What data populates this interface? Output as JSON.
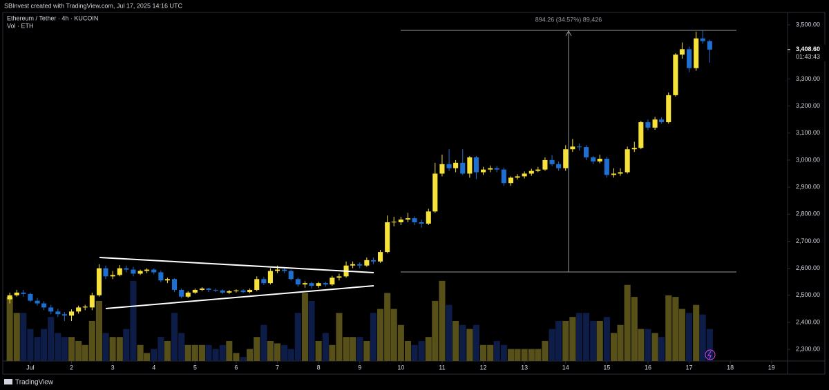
{
  "header": {
    "credit": "SBInvest created with TradingView.com, Jul 17, 2025 14:16 UTC",
    "footer": "TradingView"
  },
  "chart_data": {
    "type": "candlestick",
    "title": "Ethereum / Tether · 4h · KUCOIN",
    "subtitle": "Vol · ETH",
    "up_color": "#f7e23b",
    "down_color": "#1f6fd0",
    "volume_up_color": "#575018",
    "volume_down_color": "#0e1d48",
    "x": [
      0.5,
      0.67,
      0.83,
      1,
      1.17,
      1.33,
      1.5,
      1.67,
      1.83,
      2,
      2.17,
      2.33,
      2.5,
      2.67,
      2.83,
      3,
      3.17,
      3.33,
      3.5,
      3.67,
      3.83,
      4,
      4.17,
      4.33,
      4.5,
      4.67,
      4.83,
      5,
      5.17,
      5.33,
      5.5,
      5.67,
      5.83,
      6,
      6.17,
      6.33,
      6.5,
      6.67,
      6.83,
      7,
      7.17,
      7.33,
      7.5,
      7.67,
      7.83,
      8,
      8.17,
      8.33,
      8.5,
      8.67,
      8.83,
      9,
      9.17,
      9.33,
      9.5,
      9.67,
      9.83,
      10,
      10.17,
      10.33,
      10.5,
      10.67,
      10.83,
      11,
      11.17,
      11.33,
      11.5,
      11.67,
      11.83,
      12,
      12.17,
      12.33,
      12.5,
      12.67,
      12.83,
      13,
      13.17,
      13.33,
      13.5,
      13.67,
      13.83,
      14,
      14.17,
      14.33,
      14.5,
      14.67,
      14.83,
      15,
      15.17,
      15.33,
      15.5,
      15.67,
      15.83,
      16,
      16.17,
      16.33,
      16.5,
      16.67,
      16.83,
      17,
      17.17,
      17.33,
      17.5
    ],
    "ohlc": [
      [
        2485,
        2510,
        2470,
        2500
      ],
      [
        2500,
        2520,
        2495,
        2510
      ],
      [
        2510,
        2520,
        2495,
        2505
      ],
      [
        2505,
        2510,
        2475,
        2480
      ],
      [
        2480,
        2490,
        2462,
        2470
      ],
      [
        2470,
        2478,
        2445,
        2455
      ],
      [
        2455,
        2465,
        2430,
        2440
      ],
      [
        2440,
        2450,
        2420,
        2430
      ],
      [
        2430,
        2438,
        2405,
        2425
      ],
      [
        2425,
        2448,
        2405,
        2440
      ],
      [
        2440,
        2462,
        2432,
        2455
      ],
      [
        2455,
        2465,
        2445,
        2458
      ],
      [
        2455,
        2510,
        2445,
        2500
      ],
      [
        2500,
        2615,
        2495,
        2600
      ],
      [
        2600,
        2610,
        2560,
        2570
      ],
      [
        2570,
        2590,
        2560,
        2575
      ],
      [
        2575,
        2612,
        2570,
        2600
      ],
      [
        2600,
        2610,
        2585,
        2595
      ],
      [
        2595,
        2605,
        2570,
        2580
      ],
      [
        2580,
        2595,
        2575,
        2590
      ],
      [
        2590,
        2600,
        2582,
        2595
      ],
      [
        2595,
        2600,
        2578,
        2585
      ],
      [
        2585,
        2592,
        2548,
        2555
      ],
      [
        2555,
        2565,
        2545,
        2560
      ],
      [
        2560,
        2563,
        2512,
        2520
      ],
      [
        2520,
        2525,
        2488,
        2495
      ],
      [
        2495,
        2515,
        2490,
        2510
      ],
      [
        2510,
        2525,
        2505,
        2520
      ],
      [
        2520,
        2530,
        2515,
        2525
      ],
      [
        2525,
        2528,
        2512,
        2520
      ],
      [
        2520,
        2525,
        2512,
        2518
      ],
      [
        2518,
        2522,
        2505,
        2510
      ],
      [
        2510,
        2520,
        2505,
        2515
      ],
      [
        2515,
        2522,
        2510,
        2518
      ],
      [
        2518,
        2522,
        2508,
        2512
      ],
      [
        2512,
        2525,
        2508,
        2520
      ],
      [
        2520,
        2570,
        2515,
        2560
      ],
      [
        2560,
        2568,
        2538,
        2545
      ],
      [
        2545,
        2600,
        2540,
        2590
      ],
      [
        2590,
        2610,
        2582,
        2595
      ],
      [
        2595,
        2600,
        2582,
        2590
      ],
      [
        2590,
        2595,
        2555,
        2560
      ],
      [
        2560,
        2565,
        2532,
        2540
      ],
      [
        2540,
        2552,
        2528,
        2545
      ],
      [
        2545,
        2550,
        2525,
        2535
      ],
      [
        2535,
        2550,
        2528,
        2545
      ],
      [
        2545,
        2550,
        2532,
        2540
      ],
      [
        2540,
        2572,
        2535,
        2565
      ],
      [
        2565,
        2580,
        2555,
        2570
      ],
      [
        2570,
        2625,
        2565,
        2610
      ],
      [
        2610,
        2625,
        2600,
        2615
      ],
      [
        2615,
        2622,
        2600,
        2610
      ],
      [
        2610,
        2640,
        2605,
        2630
      ],
      [
        2630,
        2640,
        2615,
        2625
      ],
      [
        2625,
        2668,
        2620,
        2660
      ],
      [
        2660,
        2795,
        2655,
        2770
      ],
      [
        2770,
        2790,
        2755,
        2772
      ],
      [
        2770,
        2790,
        2760,
        2780
      ],
      [
        2780,
        2805,
        2770,
        2785
      ],
      [
        2785,
        2792,
        2760,
        2770
      ],
      [
        2770,
        2780,
        2750,
        2765
      ],
      [
        2765,
        2820,
        2760,
        2810
      ],
      [
        2810,
        2990,
        2805,
        2950
      ],
      [
        2950,
        3020,
        2940,
        2985
      ],
      [
        2985,
        3040,
        2960,
        2970
      ],
      [
        2970,
        3000,
        2955,
        2990
      ],
      [
        2990,
        3040,
        2945,
        2950
      ],
      [
        2950,
        3015,
        2935,
        3010
      ],
      [
        3010,
        3015,
        2930,
        2955
      ],
      [
        2955,
        2975,
        2945,
        2965
      ],
      [
        2965,
        2980,
        2955,
        2970
      ],
      [
        2970,
        2978,
        2955,
        2965
      ],
      [
        2965,
        2972,
        2905,
        2915
      ],
      [
        2915,
        2940,
        2905,
        2935
      ],
      [
        2935,
        2948,
        2928,
        2940
      ],
      [
        2940,
        2958,
        2932,
        2950
      ],
      [
        2950,
        2968,
        2942,
        2960
      ],
      [
        2960,
        2975,
        2955,
        2965
      ],
      [
        2965,
        3010,
        2960,
        3000
      ],
      [
        3000,
        3018,
        2978,
        2985
      ],
      [
        2985,
        2995,
        2960,
        2970
      ],
      [
        2970,
        3055,
        2960,
        3040
      ],
      [
        3040,
        3078,
        3030,
        3050
      ],
      [
        3050,
        3062,
        3035,
        3048
      ],
      [
        3048,
        3055,
        3000,
        3010
      ],
      [
        3010,
        3015,
        2985,
        2995
      ],
      [
        2995,
        3020,
        2988,
        3005
      ],
      [
        3005,
        3012,
        2935,
        2945
      ],
      [
        2945,
        2970,
        2935,
        2950
      ],
      [
        2950,
        2970,
        2942,
        2955
      ],
      [
        2955,
        3050,
        2950,
        3040
      ],
      [
        3040,
        3068,
        3030,
        3045
      ],
      [
        3045,
        3145,
        3040,
        3140
      ],
      [
        3140,
        3150,
        3110,
        3120
      ],
      [
        3120,
        3160,
        3112,
        3150
      ],
      [
        3150,
        3158,
        3135,
        3140
      ],
      [
        3140,
        3250,
        3135,
        3240
      ],
      [
        3240,
        3395,
        3235,
        3390
      ],
      [
        3390,
        3435,
        3375,
        3410
      ],
      [
        3410,
        3420,
        3325,
        3340
      ],
      [
        3340,
        3475,
        3330,
        3450
      ],
      [
        3450,
        3480,
        3430,
        3440
      ],
      [
        3440,
        3445,
        3360,
        3408.6
      ]
    ],
    "volume": [
      80,
      60,
      60,
      40,
      30,
      40,
      55,
      35,
      30,
      30,
      25,
      20,
      50,
      75,
      35,
      30,
      30,
      40,
      100,
      20,
      10,
      15,
      30,
      25,
      60,
      35,
      20,
      20,
      20,
      20,
      15,
      20,
      25,
      10,
      5,
      15,
      30,
      45,
      25,
      22,
      20,
      15,
      60,
      85,
      75,
      25,
      35,
      20,
      60,
      30,
      30,
      30,
      25,
      60,
      65,
      85,
      65,
      45,
      25,
      20,
      25,
      30,
      75,
      100,
      70,
      50,
      45,
      40,
      45,
      20,
      20,
      25,
      20,
      15,
      15,
      15,
      15,
      15,
      25,
      40,
      50,
      50,
      55,
      60,
      60,
      50,
      50,
      55,
      35,
      45,
      95,
      80,
      40,
      40,
      35,
      30,
      82,
      80,
      65,
      60,
      70,
      58,
      40
    ],
    "volume_lim": [
      0,
      435
    ],
    "ylim": [
      2257,
      3546
    ],
    "yticks": [
      {
        "value": 2300,
        "label": "2,300.00"
      },
      {
        "value": 2400,
        "label": "2,400.00"
      },
      {
        "value": 2500,
        "label": "2,500.00"
      },
      {
        "value": 2600,
        "label": "2,600.00"
      },
      {
        "value": 2700,
        "label": "2,700.00"
      },
      {
        "value": 2800,
        "label": "2,800.00"
      },
      {
        "value": 2900,
        "label": "2,900.00"
      },
      {
        "value": 3000,
        "label": "3,000.00"
      },
      {
        "value": 3100,
        "label": "3,100.00"
      },
      {
        "value": 3200,
        "label": "3,200.00"
      },
      {
        "value": 3300,
        "label": "3,300.00"
      },
      {
        "value": 3400,
        "label": "3,400.00"
      },
      {
        "value": 3500,
        "label": "3,500.00"
      }
    ],
    "xlim": [
      0.33,
      19.39
    ],
    "xticks": [
      {
        "value": 1,
        "label": "Jul"
      },
      2,
      3,
      4,
      5,
      6,
      7,
      8,
      9,
      10,
      11,
      12,
      13,
      14,
      15,
      16,
      17,
      18,
      19
    ],
    "last_price": {
      "value": 3408.6,
      "label": "3,408.60"
    },
    "countdown": "01:43:43",
    "measure_label": "894.26 (34.57%) 89,426"
  }
}
